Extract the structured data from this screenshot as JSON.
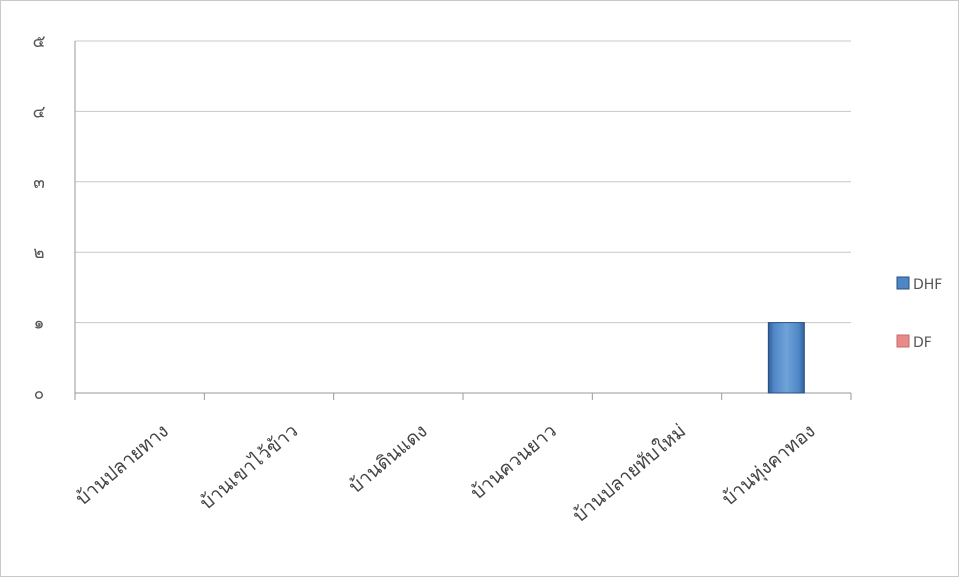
{
  "chart_data": {
    "type": "bar",
    "stacked": true,
    "title": "",
    "xlabel": "",
    "ylabel": "",
    "categories": [
      "บ้านปลายทาง",
      "บ้านเขาไว้ข้าว",
      "บ้านดินแดง",
      "บ้านควนยาว",
      "บ้านปลายทับใหม่",
      "บ้านทุ่งคาทอง"
    ],
    "series": [
      {
        "name": "DHF",
        "values": [
          0,
          0,
          0,
          0,
          0,
          1
        ],
        "color": "#4f86c6"
      },
      {
        "name": "DF",
        "values": [
          0,
          0,
          0,
          0,
          0,
          0
        ],
        "color": "#e88a8a"
      }
    ],
    "ylim": [
      0,
      5
    ],
    "yticks": [
      0,
      1,
      2,
      3,
      4,
      5
    ],
    "ytick_labels": [
      "๐",
      "๑",
      "๒",
      "๓",
      "๔",
      "๕"
    ],
    "grid": true,
    "legend_position": "right"
  }
}
